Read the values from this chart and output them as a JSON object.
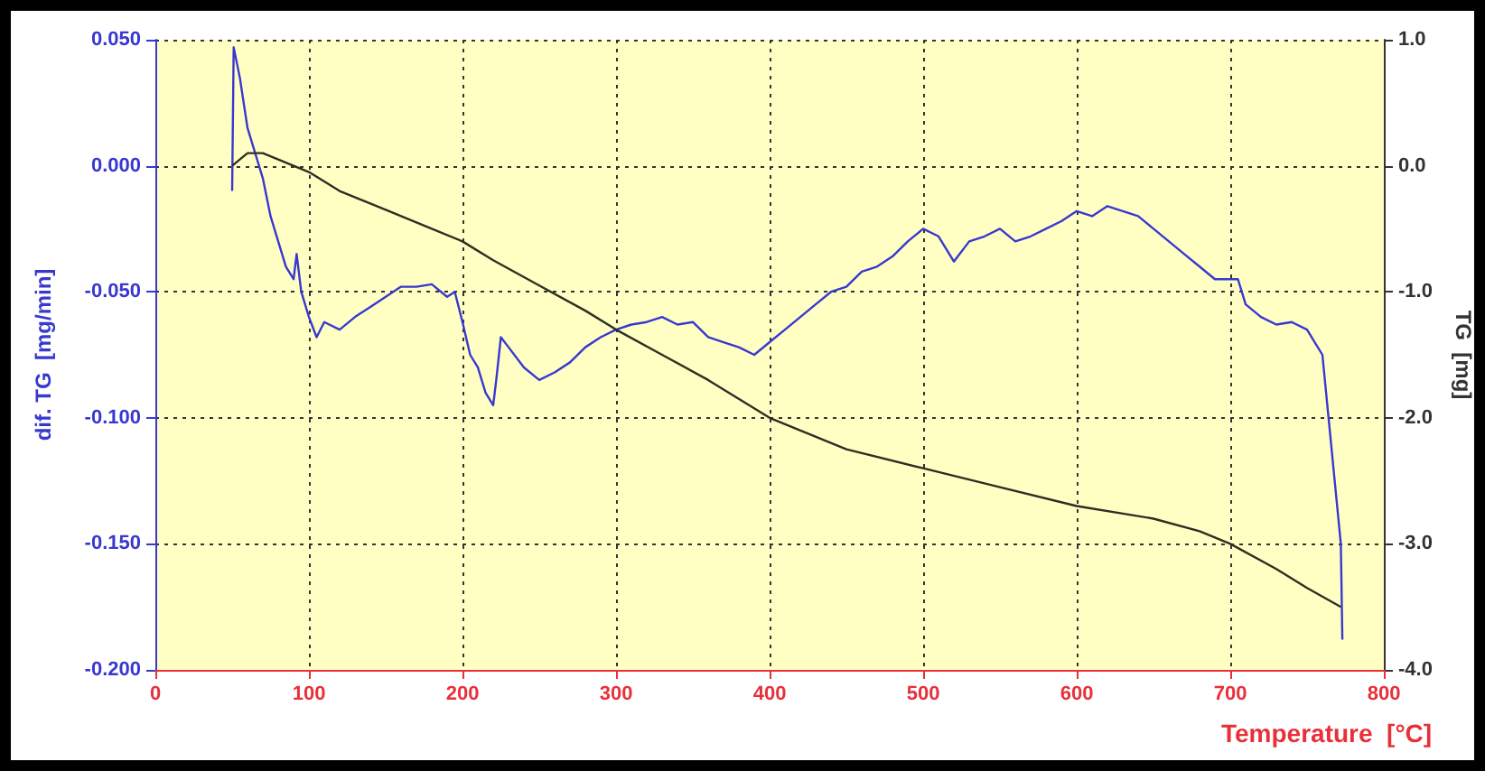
{
  "chart_data": {
    "type": "line",
    "xlabel": "Temperature  [°C]",
    "ylabel": "dif. TG  [mg/min]",
    "y2label": "TG  [mg]",
    "xlim": [
      0,
      800
    ],
    "xticks": [
      0,
      100,
      200,
      300,
      400,
      500,
      600,
      700,
      800
    ],
    "ylim": [
      -0.2,
      0.05
    ],
    "yticks": [
      {
        "value": -0.2,
        "label": "-0.200"
      },
      {
        "value": -0.15,
        "label": "-0.150"
      },
      {
        "value": -0.1,
        "label": "-0.100"
      },
      {
        "value": -0.05,
        "label": "-0.050"
      },
      {
        "value": 0,
        "label": "0.000"
      },
      {
        "value": 0.05,
        "label": "0.050"
      }
    ],
    "y2lim": [
      -4,
      1
    ],
    "y2ticks": [
      {
        "value": -4,
        "label": "-4.0"
      },
      {
        "value": -3,
        "label": "-3.0"
      },
      {
        "value": -2,
        "label": "-2.0"
      },
      {
        "value": -1,
        "label": "-1.0"
      },
      {
        "value": 0,
        "label": "0.0"
      },
      {
        "value": 1,
        "label": "1.0"
      }
    ],
    "grid": true,
    "marker": "none",
    "line_style": "solid",
    "series": [
      {
        "color": "#3838d0",
        "x": [
          50,
          51,
          55,
          60,
          65,
          70,
          75,
          80,
          85,
          90,
          92,
          95,
          100,
          105,
          110,
          120,
          130,
          140,
          150,
          160,
          170,
          180,
          190,
          195,
          200,
          205,
          210,
          215,
          220,
          222,
          225,
          230,
          240,
          250,
          260,
          270,
          280,
          290,
          300,
          310,
          320,
          330,
          340,
          350,
          360,
          370,
          380,
          390,
          400,
          410,
          420,
          430,
          440,
          450,
          460,
          470,
          480,
          490,
          500,
          510,
          520,
          530,
          540,
          550,
          560,
          570,
          580,
          590,
          600,
          610,
          620,
          630,
          640,
          650,
          660,
          670,
          680,
          690,
          700,
          705,
          710,
          720,
          730,
          740,
          750,
          755,
          760,
          764,
          768,
          772,
          773
        ],
        "values": [
          -0.01,
          0.047,
          0.035,
          0.015,
          0.005,
          -0.005,
          -0.02,
          -0.03,
          -0.04,
          -0.045,
          -0.035,
          -0.05,
          -0.06,
          -0.068,
          -0.062,
          -0.065,
          -0.06,
          -0.056,
          -0.052,
          -0.048,
          -0.048,
          -0.047,
          -0.052,
          -0.05,
          -0.062,
          -0.075,
          -0.08,
          -0.09,
          -0.095,
          -0.085,
          -0.068,
          -0.072,
          -0.08,
          -0.085,
          -0.082,
          -0.078,
          -0.072,
          -0.068,
          -0.065,
          -0.063,
          -0.062,
          -0.06,
          -0.063,
          -0.062,
          -0.068,
          -0.07,
          -0.072,
          -0.075,
          -0.07,
          -0.065,
          -0.06,
          -0.055,
          -0.05,
          -0.048,
          -0.042,
          -0.04,
          -0.036,
          -0.03,
          -0.025,
          -0.028,
          -0.038,
          -0.03,
          -0.028,
          -0.025,
          -0.03,
          -0.028,
          -0.025,
          -0.022,
          -0.018,
          -0.02,
          -0.016,
          -0.018,
          -0.02,
          -0.025,
          -0.03,
          -0.035,
          -0.04,
          -0.045,
          -0.045,
          -0.045,
          -0.055,
          -0.06,
          -0.063,
          -0.062,
          -0.065,
          -0.07,
          -0.075,
          -0.1,
          -0.125,
          -0.15,
          -0.188
        ]
      },
      {
        "color": "#2e2e22",
        "axis": "y2",
        "x": [
          50,
          55,
          60,
          70,
          80,
          90,
          100,
          120,
          150,
          180,
          200,
          220,
          250,
          280,
          300,
          330,
          360,
          400,
          450,
          500,
          550,
          600,
          650,
          680,
          700,
          730,
          750,
          772
        ],
        "values": [
          0.0,
          0.05,
          0.1,
          0.1,
          0.05,
          0.0,
          -0.05,
          -0.2,
          -0.35,
          -0.5,
          -0.6,
          -0.75,
          -0.95,
          -1.15,
          -1.3,
          -1.5,
          -1.7,
          -2.0,
          -2.25,
          -2.4,
          -2.55,
          -2.7,
          -2.8,
          -2.9,
          -3.0,
          -3.2,
          -3.35,
          -3.5
        ]
      }
    ]
  }
}
